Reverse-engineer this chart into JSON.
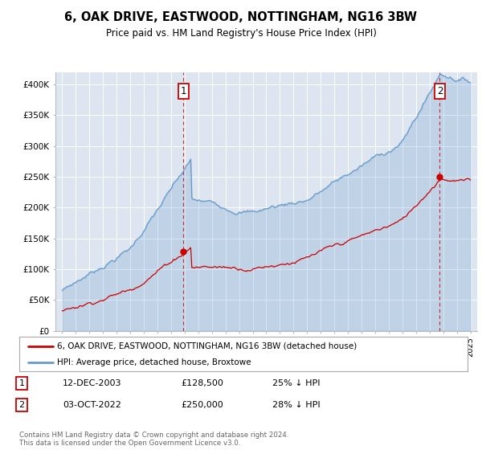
{
  "title": "6, OAK DRIVE, EASTWOOD, NOTTINGHAM, NG16 3BW",
  "subtitle": "Price paid vs. HM Land Registry's House Price Index (HPI)",
  "bg_color": "white",
  "plot_bg_color": "#dde6f0",
  "legend_line1": "6, OAK DRIVE, EASTWOOD, NOTTINGHAM, NG16 3BW (detached house)",
  "legend_line2": "HPI: Average price, detached house, Broxtowe",
  "annotation1_date": "12-DEC-2003",
  "annotation1_price": "£128,500",
  "annotation1_hpi": "25% ↓ HPI",
  "annotation2_date": "03-OCT-2022",
  "annotation2_price": "£250,000",
  "annotation2_hpi": "28% ↓ HPI",
  "footer": "Contains HM Land Registry data © Crown copyright and database right 2024.\nThis data is licensed under the Open Government Licence v3.0.",
  "red_color": "#cc0000",
  "blue_color": "#6699cc",
  "ylim": [
    0,
    420000
  ],
  "yticks": [
    0,
    50000,
    100000,
    150000,
    200000,
    250000,
    300000,
    350000,
    400000
  ],
  "ytick_labels": [
    "£0",
    "£50K",
    "£100K",
    "£150K",
    "£200K",
    "£250K",
    "£300K",
    "£350K",
    "£400K"
  ],
  "sale1_x": 2003.917,
  "sale1_y": 128500,
  "sale2_x": 2022.75,
  "sale2_y": 250000,
  "xmin": 1994.5,
  "xmax": 2025.5,
  "xtick_years": [
    1995,
    1996,
    1997,
    1998,
    1999,
    2000,
    2001,
    2002,
    2003,
    2004,
    2005,
    2006,
    2007,
    2008,
    2009,
    2010,
    2011,
    2012,
    2013,
    2014,
    2015,
    2016,
    2017,
    2018,
    2019,
    2020,
    2021,
    2022,
    2023,
    2024,
    2025
  ]
}
